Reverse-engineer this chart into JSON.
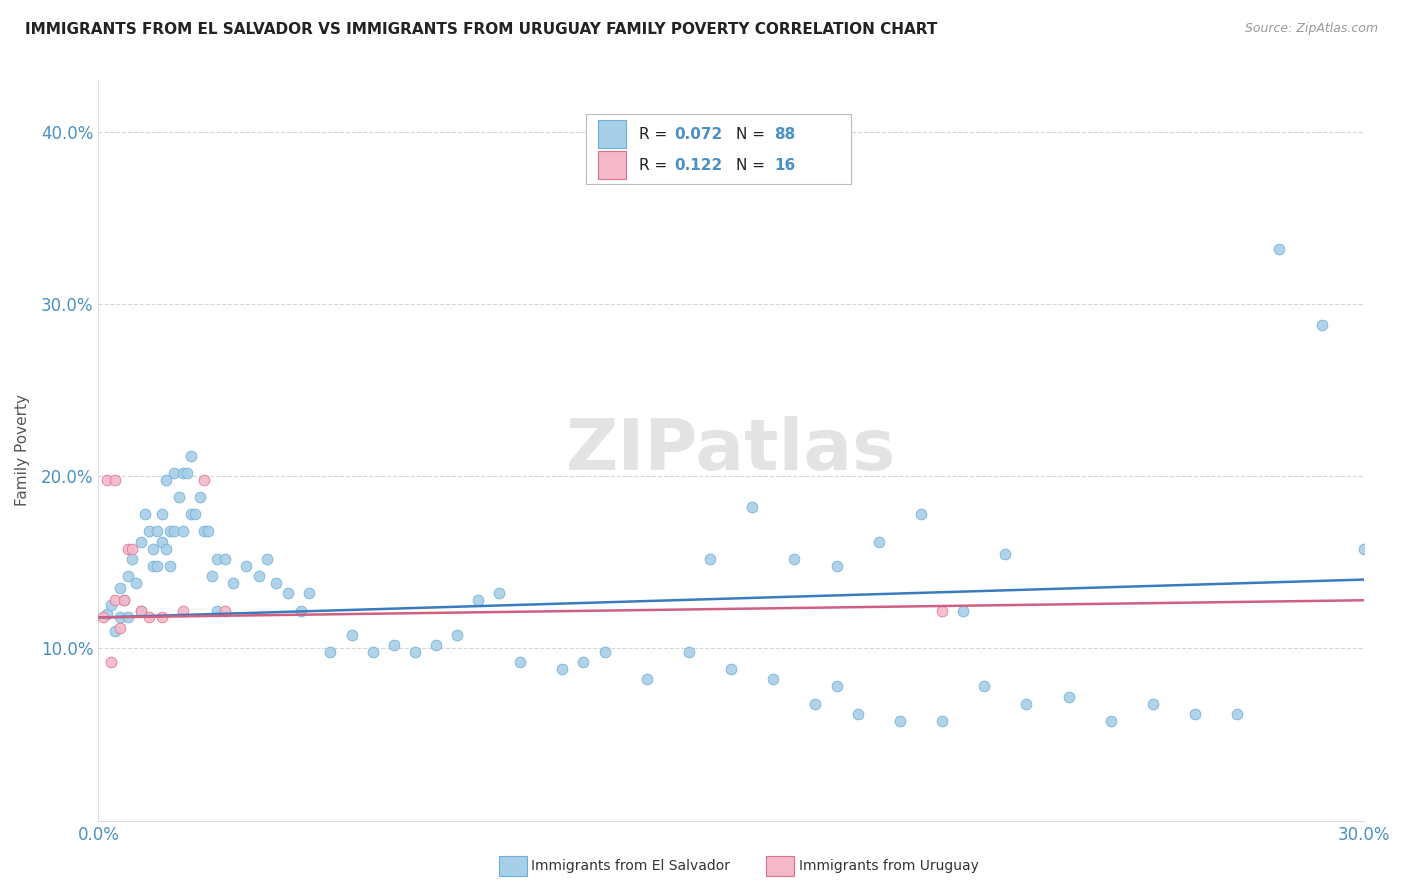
{
  "title": "IMMIGRANTS FROM EL SALVADOR VS IMMIGRANTS FROM URUGUAY FAMILY POVERTY CORRELATION CHART",
  "source": "Source: ZipAtlas.com",
  "ylabel": "Family Poverty",
  "xlim": [
    0.0,
    0.3
  ],
  "ylim": [
    0.0,
    0.43
  ],
  "legend1_R": "0.072",
  "legend1_N": "88",
  "legend2_R": "0.122",
  "legend2_N": "16",
  "color_salvador": "#a8cfe8",
  "edgecolor_salvador": "#6baed6",
  "color_uruguay": "#f4b8c8",
  "edgecolor_uruguay": "#e07090",
  "line_color_salvador": "#3a7abf",
  "line_color_uruguay": "#d06080",
  "watermark": "ZIPatlas",
  "sal_x": [
    0.002,
    0.003,
    0.004,
    0.005,
    0.005,
    0.006,
    0.007,
    0.007,
    0.008,
    0.009,
    0.01,
    0.01,
    0.011,
    0.012,
    0.013,
    0.013,
    0.014,
    0.014,
    0.015,
    0.015,
    0.016,
    0.016,
    0.017,
    0.017,
    0.018,
    0.018,
    0.019,
    0.02,
    0.02,
    0.021,
    0.022,
    0.022,
    0.023,
    0.024,
    0.025,
    0.026,
    0.027,
    0.028,
    0.028,
    0.03,
    0.032,
    0.035,
    0.038,
    0.04,
    0.042,
    0.045,
    0.048,
    0.05,
    0.055,
    0.06,
    0.065,
    0.07,
    0.075,
    0.08,
    0.085,
    0.09,
    0.095,
    0.1,
    0.11,
    0.115,
    0.12,
    0.13,
    0.14,
    0.15,
    0.16,
    0.17,
    0.175,
    0.18,
    0.19,
    0.2,
    0.21,
    0.22,
    0.23,
    0.24,
    0.25,
    0.26,
    0.27,
    0.28,
    0.29,
    0.3,
    0.145,
    0.155,
    0.165,
    0.175,
    0.185,
    0.195,
    0.205,
    0.215
  ],
  "sal_y": [
    0.12,
    0.125,
    0.11,
    0.135,
    0.118,
    0.128,
    0.142,
    0.118,
    0.152,
    0.138,
    0.162,
    0.122,
    0.178,
    0.168,
    0.158,
    0.148,
    0.168,
    0.148,
    0.162,
    0.178,
    0.198,
    0.158,
    0.168,
    0.148,
    0.168,
    0.202,
    0.188,
    0.202,
    0.168,
    0.202,
    0.212,
    0.178,
    0.178,
    0.188,
    0.168,
    0.168,
    0.142,
    0.152,
    0.122,
    0.152,
    0.138,
    0.148,
    0.142,
    0.152,
    0.138,
    0.132,
    0.122,
    0.132,
    0.098,
    0.108,
    0.098,
    0.102,
    0.098,
    0.102,
    0.108,
    0.128,
    0.132,
    0.092,
    0.088,
    0.092,
    0.098,
    0.082,
    0.098,
    0.088,
    0.082,
    0.068,
    0.078,
    0.062,
    0.058,
    0.058,
    0.078,
    0.068,
    0.072,
    0.058,
    0.068,
    0.062,
    0.062,
    0.332,
    0.288,
    0.158,
    0.152,
    0.182,
    0.152,
    0.148,
    0.162,
    0.178,
    0.122,
    0.155
  ],
  "uru_x": [
    0.001,
    0.002,
    0.003,
    0.004,
    0.004,
    0.005,
    0.006,
    0.007,
    0.008,
    0.01,
    0.012,
    0.015,
    0.02,
    0.025,
    0.03,
    0.2
  ],
  "uru_y": [
    0.118,
    0.198,
    0.092,
    0.198,
    0.128,
    0.112,
    0.128,
    0.158,
    0.158,
    0.122,
    0.118,
    0.118,
    0.122,
    0.198,
    0.122,
    0.122
  ],
  "sal_line_x": [
    0.0,
    0.3
  ],
  "sal_line_y": [
    0.118,
    0.14
  ],
  "uru_line_x": [
    0.0,
    0.3
  ],
  "uru_line_y": [
    0.118,
    0.128
  ]
}
